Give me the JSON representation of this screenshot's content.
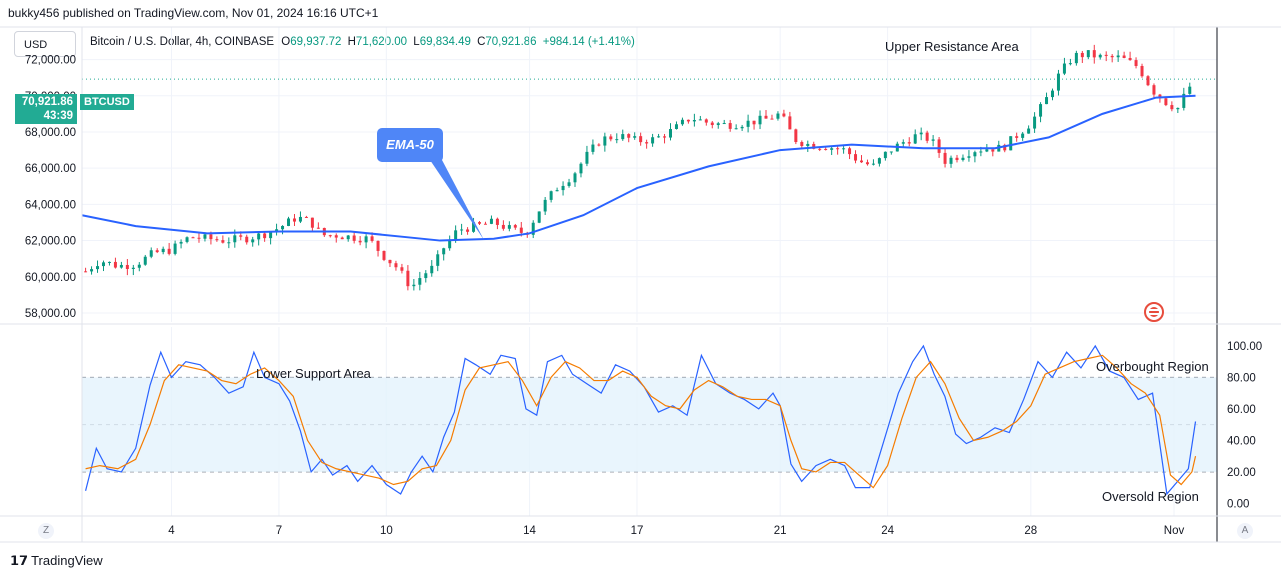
{
  "header": {
    "published_line": "bukky456 published on TradingView.com, Nov 01, 2024 16:16 UTC+1",
    "currency": "USD"
  },
  "legend": {
    "symbol": "Bitcoin / U.S. Dollar, 4h, COINBASE",
    "open_label": "O",
    "open": "69,937.72",
    "high_label": "H",
    "high": "71,620.00",
    "low_label": "L",
    "low": "69,834.49",
    "close_label": "C",
    "close": "70,921.86",
    "change": "+984.14 (+1.41%)"
  },
  "price_tag": {
    "price": "70,921.86",
    "countdown": "43:39",
    "symbol": "BTCUSD"
  },
  "annotations": {
    "ema_callout": "EMA-50",
    "upper_resistance": "Upper Resistance Area",
    "lower_support": "Lower Support Area",
    "overbought": "Overbought Region",
    "oversold": "Oversold Region"
  },
  "footer": {
    "brand": "TradingView",
    "left_button": "Z",
    "right_button": "A"
  },
  "colors": {
    "up": "#089981",
    "down": "#f23645",
    "ema": "#2962ff",
    "stoch_k": "#2962ff",
    "stoch_d": "#f57c00",
    "band_fill": "#e3f2fd"
  },
  "chart_data": [
    {
      "type": "candlestick",
      "yticks": [
        "72,000.00",
        "70,000.00",
        "68,000.00",
        "66,000.00",
        "64,000.00",
        "62,000.00",
        "60,000.00",
        "58,000.00"
      ],
      "ytick_values": [
        72000,
        70000,
        68000,
        66000,
        64000,
        62000,
        60000,
        58000
      ],
      "ylim": [
        57500,
        73800
      ],
      "xticks": [
        "4",
        "7",
        "10",
        "14",
        "17",
        "21",
        "24",
        "28",
        "Nov"
      ],
      "xtick_days": [
        4,
        7,
        10,
        14,
        17,
        21,
        24,
        28,
        32
      ],
      "xlim_days": [
        1.5,
        33.2
      ],
      "current_price": 70921.86,
      "close_path": [
        [
          1.6,
          60300
        ],
        [
          2.0,
          60900
        ],
        [
          2.5,
          60600
        ],
        [
          3.0,
          60700
        ],
        [
          3.5,
          61300
        ],
        [
          4.0,
          61500
        ],
        [
          4.5,
          62200
        ],
        [
          5.0,
          62100
        ],
        [
          5.5,
          62000
        ],
        [
          6.0,
          62100
        ],
        [
          6.5,
          62300
        ],
        [
          7.0,
          62700
        ],
        [
          7.5,
          63300
        ],
        [
          7.9,
          63000
        ],
        [
          8.2,
          62300
        ],
        [
          8.6,
          62300
        ],
        [
          9.0,
          62200
        ],
        [
          9.5,
          62100
        ],
        [
          9.9,
          61200
        ],
        [
          10.3,
          60500
        ],
        [
          10.7,
          59400
        ],
        [
          11.0,
          60100
        ],
        [
          11.3,
          60500
        ],
        [
          11.6,
          61600
        ],
        [
          12.0,
          62600
        ],
        [
          12.5,
          62800
        ],
        [
          13.0,
          63000
        ],
        [
          13.5,
          62600
        ],
        [
          13.9,
          62400
        ],
        [
          14.3,
          63800
        ],
        [
          14.8,
          65000
        ],
        [
          15.2,
          65600
        ],
        [
          15.6,
          66700
        ],
        [
          16.0,
          67600
        ],
        [
          16.5,
          67800
        ],
        [
          17.0,
          67500
        ],
        [
          17.5,
          67600
        ],
        [
          18.0,
          68100
        ],
        [
          18.5,
          68800
        ],
        [
          19.0,
          68500
        ],
        [
          19.5,
          68400
        ],
        [
          20.0,
          68500
        ],
        [
          20.6,
          68700
        ],
        [
          21.0,
          69000
        ],
        [
          21.4,
          67600
        ],
        [
          21.8,
          67300
        ],
        [
          22.3,
          67200
        ],
        [
          22.8,
          67000
        ],
        [
          23.2,
          66400
        ],
        [
          23.6,
          66100
        ],
        [
          24.0,
          66900
        ],
        [
          24.4,
          67400
        ],
        [
          24.8,
          67800
        ],
        [
          25.2,
          67600
        ],
        [
          25.6,
          66400
        ],
        [
          26.0,
          66700
        ],
        [
          26.4,
          67000
        ],
        [
          26.8,
          67100
        ],
        [
          27.2,
          67100
        ],
        [
          27.6,
          67800
        ],
        [
          28.0,
          68500
        ],
        [
          28.4,
          69700
        ],
        [
          28.8,
          71200
        ],
        [
          29.2,
          72200
        ],
        [
          29.6,
          72300
        ],
        [
          30.0,
          72100
        ],
        [
          30.5,
          72100
        ],
        [
          31.0,
          71600
        ],
        [
          31.4,
          70300
        ],
        [
          31.8,
          69600
        ],
        [
          32.1,
          69300
        ],
        [
          32.4,
          70400
        ],
        [
          32.6,
          70920
        ]
      ],
      "ema50_path": [
        [
          1.5,
          63400
        ],
        [
          3.0,
          62800
        ],
        [
          5.0,
          62400
        ],
        [
          7.0,
          62500
        ],
        [
          9.0,
          62500
        ],
        [
          10.5,
          62200
        ],
        [
          11.5,
          62000
        ],
        [
          13.0,
          62100
        ],
        [
          14.0,
          62400
        ],
        [
          15.5,
          63400
        ],
        [
          17.0,
          64900
        ],
        [
          19.0,
          66100
        ],
        [
          21.0,
          67000
        ],
        [
          23.0,
          67300
        ],
        [
          25.0,
          67100
        ],
        [
          27.0,
          67100
        ],
        [
          28.5,
          67700
        ],
        [
          30.0,
          69000
        ],
        [
          31.5,
          69900
        ],
        [
          32.6,
          70000
        ]
      ]
    },
    {
      "type": "line",
      "title": "",
      "yticks": [
        "100.00",
        "80.00",
        "60.00",
        "40.00",
        "20.00",
        "0.00"
      ],
      "ytick_values": [
        100,
        80,
        60,
        40,
        20,
        0
      ],
      "ylim": [
        -8,
        112
      ],
      "band": [
        20,
        80
      ],
      "midline": 50,
      "series": [
        {
          "key": "k",
          "points": [
            [
              1.6,
              8
            ],
            [
              1.9,
              35
            ],
            [
              2.2,
              22
            ],
            [
              2.6,
              20
            ],
            [
              3.0,
              35
            ],
            [
              3.4,
              75
            ],
            [
              3.7,
              96
            ],
            [
              4.0,
              80
            ],
            [
              4.4,
              90
            ],
            [
              4.8,
              88
            ],
            [
              5.2,
              80
            ],
            [
              5.6,
              70
            ],
            [
              6.0,
              74
            ],
            [
              6.3,
              96
            ],
            [
              6.6,
              80
            ],
            [
              7.0,
              76
            ],
            [
              7.3,
              65
            ],
            [
              7.6,
              46
            ],
            [
              7.9,
              20
            ],
            [
              8.2,
              28
            ],
            [
              8.5,
              18
            ],
            [
              8.9,
              24
            ],
            [
              9.2,
              14
            ],
            [
              9.6,
              24
            ],
            [
              10.0,
              12
            ],
            [
              10.4,
              6
            ],
            [
              10.7,
              20
            ],
            [
              11.0,
              30
            ],
            [
              11.3,
              20
            ],
            [
              11.6,
              42
            ],
            [
              11.9,
              58
            ],
            [
              12.2,
              92
            ],
            [
              12.5,
              88
            ],
            [
              12.9,
              82
            ],
            [
              13.2,
              94
            ],
            [
              13.6,
              92
            ],
            [
              13.9,
              60
            ],
            [
              14.2,
              56
            ],
            [
              14.5,
              90
            ],
            [
              14.9,
              94
            ],
            [
              15.2,
              82
            ],
            [
              15.6,
              76
            ],
            [
              16.0,
              70
            ],
            [
              16.4,
              88
            ],
            [
              16.8,
              84
            ],
            [
              17.2,
              74
            ],
            [
              17.6,
              58
            ],
            [
              18.0,
              62
            ],
            [
              18.4,
              56
            ],
            [
              18.8,
              94
            ],
            [
              19.2,
              76
            ],
            [
              19.6,
              70
            ],
            [
              20.0,
              66
            ],
            [
              20.4,
              60
            ],
            [
              20.8,
              70
            ],
            [
              21.0,
              62
            ],
            [
              21.3,
              25
            ],
            [
              21.6,
              14
            ],
            [
              22.0,
              24
            ],
            [
              22.4,
              28
            ],
            [
              22.8,
              24
            ],
            [
              23.1,
              10
            ],
            [
              23.5,
              10
            ],
            [
              23.9,
              40
            ],
            [
              24.3,
              70
            ],
            [
              24.7,
              90
            ],
            [
              25.0,
              100
            ],
            [
              25.3,
              82
            ],
            [
              25.6,
              68
            ],
            [
              25.9,
              44
            ],
            [
              26.2,
              38
            ],
            [
              26.6,
              42
            ],
            [
              27.0,
              48
            ],
            [
              27.4,
              45
            ],
            [
              27.8,
              66
            ],
            [
              28.2,
              90
            ],
            [
              28.6,
              80
            ],
            [
              29.0,
              96
            ],
            [
              29.4,
              86
            ],
            [
              29.8,
              100
            ],
            [
              30.2,
              84
            ],
            [
              30.6,
              80
            ],
            [
              31.0,
              66
            ],
            [
              31.4,
              70
            ],
            [
              31.8,
              6
            ],
            [
              32.1,
              14
            ],
            [
              32.4,
              22
            ],
            [
              32.6,
              52
            ]
          ]
        },
        {
          "key": "d",
          "points": [
            [
              1.6,
              22
            ],
            [
              2.0,
              24
            ],
            [
              2.5,
              22
            ],
            [
              3.0,
              28
            ],
            [
              3.4,
              50
            ],
            [
              3.8,
              78
            ],
            [
              4.2,
              88
            ],
            [
              4.6,
              86
            ],
            [
              5.0,
              84
            ],
            [
              5.4,
              78
            ],
            [
              5.8,
              76
            ],
            [
              6.2,
              82
            ],
            [
              6.6,
              86
            ],
            [
              7.0,
              78
            ],
            [
              7.4,
              68
            ],
            [
              7.8,
              40
            ],
            [
              8.2,
              26
            ],
            [
              8.6,
              22
            ],
            [
              9.0,
              20
            ],
            [
              9.4,
              18
            ],
            [
              9.8,
              16
            ],
            [
              10.2,
              12
            ],
            [
              10.6,
              14
            ],
            [
              11.0,
              22
            ],
            [
              11.4,
              24
            ],
            [
              11.8,
              40
            ],
            [
              12.2,
              72
            ],
            [
              12.6,
              86
            ],
            [
              13.0,
              88
            ],
            [
              13.4,
              90
            ],
            [
              13.8,
              78
            ],
            [
              14.2,
              62
            ],
            [
              14.6,
              80
            ],
            [
              15.0,
              90
            ],
            [
              15.4,
              86
            ],
            [
              15.8,
              78
            ],
            [
              16.2,
              78
            ],
            [
              16.6,
              84
            ],
            [
              17.0,
              80
            ],
            [
              17.4,
              68
            ],
            [
              17.8,
              62
            ],
            [
              18.2,
              60
            ],
            [
              18.6,
              72
            ],
            [
              19.0,
              78
            ],
            [
              19.4,
              74
            ],
            [
              19.8,
              68
            ],
            [
              20.2,
              66
            ],
            [
              20.6,
              66
            ],
            [
              21.0,
              62
            ],
            [
              21.3,
              40
            ],
            [
              21.6,
              22
            ],
            [
              22.0,
              20
            ],
            [
              22.4,
              26
            ],
            [
              22.8,
              26
            ],
            [
              23.2,
              18
            ],
            [
              23.6,
              10
            ],
            [
              24.0,
              24
            ],
            [
              24.4,
              54
            ],
            [
              24.8,
              80
            ],
            [
              25.2,
              90
            ],
            [
              25.6,
              76
            ],
            [
              26.0,
              54
            ],
            [
              26.4,
              40
            ],
            [
              26.8,
              42
            ],
            [
              27.2,
              46
            ],
            [
              27.6,
              52
            ],
            [
              28.0,
              62
            ],
            [
              28.4,
              82
            ],
            [
              28.8,
              86
            ],
            [
              29.2,
              90
            ],
            [
              29.6,
              92
            ],
            [
              30.0,
              94
            ],
            [
              30.4,
              86
            ],
            [
              30.8,
              76
            ],
            [
              31.2,
              70
            ],
            [
              31.6,
              56
            ],
            [
              31.9,
              18
            ],
            [
              32.2,
              12
            ],
            [
              32.5,
              20
            ],
            [
              32.6,
              30
            ]
          ]
        }
      ]
    }
  ]
}
